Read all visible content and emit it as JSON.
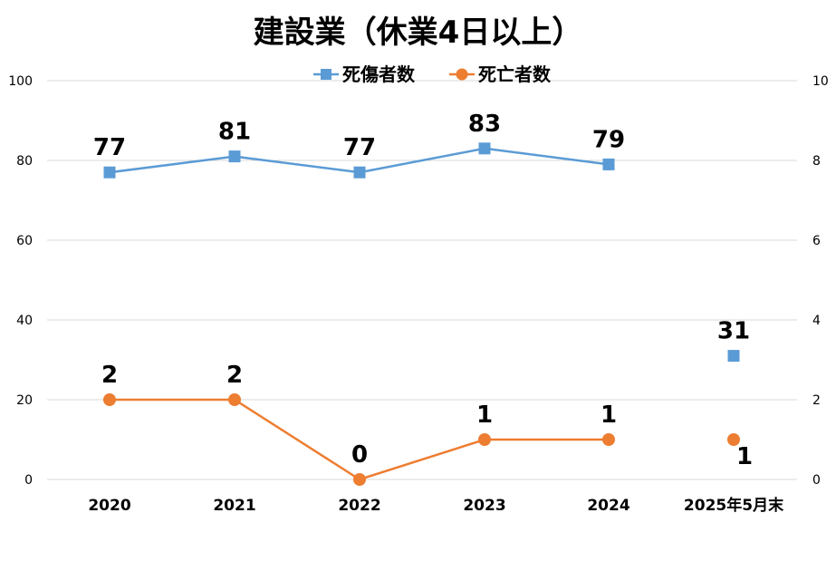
{
  "chart_data": {
    "type": "line",
    "title": "建設業（休業4日以上）",
    "categories": [
      "2020",
      "2021",
      "2022",
      "2023",
      "2024",
      "2025年5月末"
    ],
    "series": [
      {
        "name": "死傷者数",
        "axis": "left",
        "color": "#5B9BD5",
        "marker": "square",
        "values": [
          77,
          81,
          77,
          83,
          79,
          31
        ],
        "connected_through_index": 4
      },
      {
        "name": "死亡者数",
        "axis": "right",
        "color": "#ED7D31",
        "marker": "circle",
        "values": [
          2,
          2,
          0,
          1,
          1,
          1
        ],
        "connected_through_index": 4
      }
    ],
    "y_left": {
      "ylim": [
        0,
        100
      ],
      "ticks": [
        "0",
        "20",
        "40",
        "60",
        "80",
        "100"
      ]
    },
    "y_right": {
      "ylim": [
        0,
        10
      ],
      "ticks": [
        "0",
        "2",
        "4",
        "6",
        "8",
        "10"
      ]
    },
    "grid": true,
    "legend_position": "top-center"
  }
}
